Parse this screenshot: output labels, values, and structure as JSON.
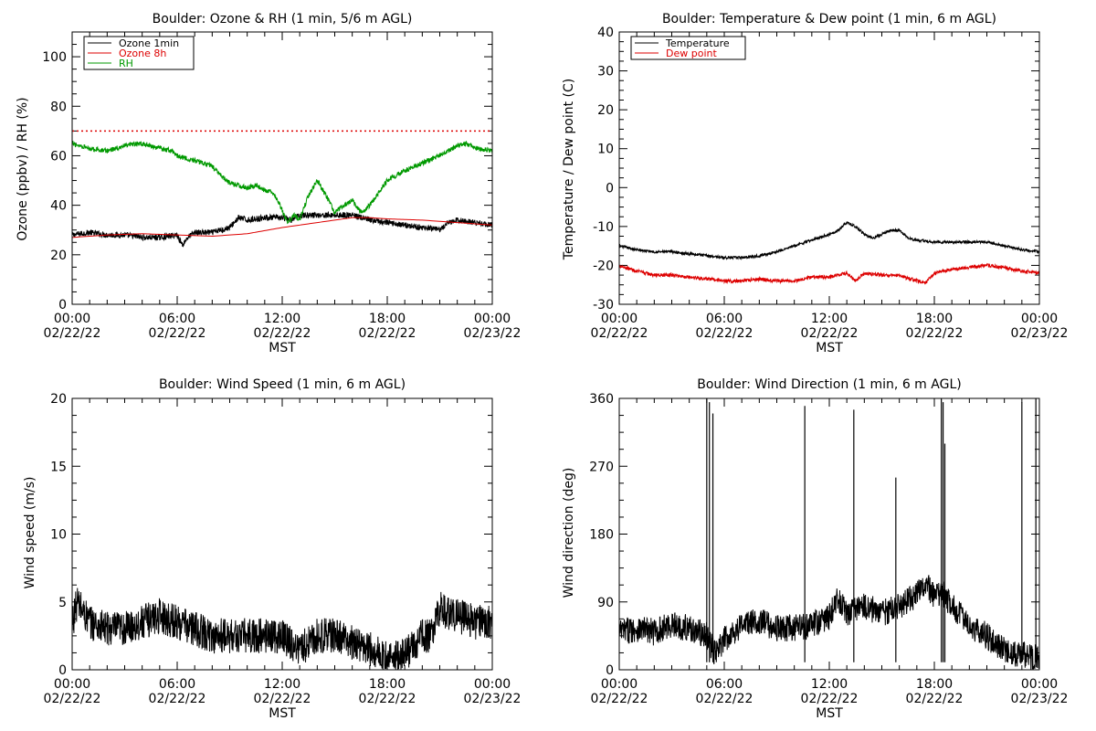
{
  "chart_data": [
    {
      "type": "line",
      "title": "Boulder: Ozone & RH (1 min, 5/6 m AGL)",
      "xlabel": "MST",
      "ylabel": "Ozone (ppbv) / RH (%)",
      "xlim": [
        0,
        24
      ],
      "ylim": [
        0,
        110
      ],
      "yticks": [
        0,
        20,
        40,
        60,
        80,
        100
      ],
      "xticks": [
        {
          "time": "00:00",
          "date": "02/22/22"
        },
        {
          "time": "06:00",
          "date": "02/22/22"
        },
        {
          "time": "12:00",
          "date": "02/22/22"
        },
        {
          "time": "18:00",
          "date": "02/22/22"
        },
        {
          "time": "00:00",
          "date": "02/23/22"
        }
      ],
      "legend_position": "top-left",
      "reference_line": {
        "y": 70,
        "color": "#dd0000",
        "style": "dotted"
      },
      "series": [
        {
          "name": "Ozone 1min",
          "color": "#000000",
          "noise": 1.2,
          "x": [
            0,
            1,
            2,
            3,
            4,
            5,
            6,
            6.3,
            6.6,
            7,
            8,
            9,
            9.5,
            10,
            11,
            12,
            12.5,
            13,
            14,
            15,
            16,
            16.5,
            17,
            18,
            19,
            20,
            21,
            21.5,
            22,
            23,
            24
          ],
          "y": [
            28,
            29,
            28,
            28,
            27,
            27,
            28,
            24,
            27,
            29,
            29,
            31,
            35,
            34,
            35,
            35,
            34,
            36,
            36,
            36,
            36,
            35,
            34,
            33,
            32,
            31,
            30,
            33,
            34,
            33,
            32
          ]
        },
        {
          "name": "Ozone 8h",
          "color": "#dd0000",
          "noise": 0,
          "x": [
            0,
            2,
            4,
            6,
            8,
            10,
            12,
            14,
            16,
            17,
            18,
            20,
            22,
            24
          ],
          "y": [
            27,
            28,
            28.5,
            28,
            27.5,
            28.5,
            31,
            33,
            35,
            35,
            34.5,
            34,
            33,
            32
          ]
        },
        {
          "name": "RH",
          "color": "#009900",
          "noise": 1.0,
          "x": [
            0,
            0.5,
            1,
            2,
            3,
            4,
            5,
            5.7,
            6,
            7,
            8,
            8.5,
            9,
            10,
            10.5,
            11,
            11.5,
            12,
            12.3,
            12.7,
            13,
            13.5,
            14,
            14.5,
            15,
            15.5,
            16,
            16.5,
            17,
            18,
            19,
            20,
            21,
            22,
            22.5,
            23,
            24
          ],
          "y": [
            65,
            64,
            63,
            62,
            64,
            65,
            63,
            62,
            60,
            58,
            56,
            52,
            49,
            47,
            48,
            46,
            45,
            38,
            33,
            36,
            34,
            44,
            50,
            44,
            37,
            40,
            42,
            37,
            40,
            50,
            54,
            57,
            60,
            64,
            65,
            63,
            62
          ]
        }
      ]
    },
    {
      "type": "line",
      "title": "Boulder: Temperature & Dew point (1 min, 6 m AGL)",
      "xlabel": "MST",
      "ylabel": "Temperature / Dew point (C)",
      "xlim": [
        0,
        24
      ],
      "ylim": [
        -30,
        40
      ],
      "yticks": [
        -30,
        -20,
        -10,
        0,
        10,
        20,
        30,
        40
      ],
      "xticks": [
        {
          "time": "00:00",
          "date": "02/22/22"
        },
        {
          "time": "06:00",
          "date": "02/22/22"
        },
        {
          "time": "12:00",
          "date": "02/22/22"
        },
        {
          "time": "18:00",
          "date": "02/22/22"
        },
        {
          "time": "00:00",
          "date": "02/23/22"
        }
      ],
      "legend_position": "top-left",
      "series": [
        {
          "name": "Temperature",
          "color": "#000000",
          "noise": 0.35,
          "x": [
            0,
            1,
            2,
            3,
            4,
            5,
            6,
            7,
            8,
            9,
            10,
            11,
            12,
            12.5,
            13,
            13.5,
            14,
            14.5,
            15,
            15.5,
            16,
            16.5,
            17,
            18,
            19,
            20,
            21,
            22,
            23,
            24
          ],
          "y": [
            -15,
            -16,
            -16.5,
            -16.5,
            -17,
            -17.5,
            -18,
            -18,
            -17.5,
            -16.5,
            -15,
            -13.5,
            -12,
            -11,
            -9,
            -10,
            -12,
            -13,
            -12,
            -11,
            -11,
            -13,
            -13.5,
            -14,
            -14,
            -14,
            -14,
            -15,
            -16,
            -16.5
          ]
        },
        {
          "name": "Dew point",
          "color": "#dd0000",
          "noise": 0.45,
          "x": [
            0,
            1,
            2,
            3,
            4,
            5,
            6,
            7,
            8,
            9,
            10,
            11,
            12,
            13,
            13.5,
            14,
            15,
            16,
            17,
            17.5,
            18,
            19,
            20,
            21,
            22,
            23,
            24
          ],
          "y": [
            -20,
            -21.5,
            -22.5,
            -22.5,
            -23,
            -23.5,
            -24,
            -24,
            -23.5,
            -24,
            -24,
            -23,
            -23,
            -22,
            -24,
            -22,
            -22.5,
            -22.5,
            -24,
            -24.5,
            -22,
            -21,
            -20.5,
            -20,
            -20.5,
            -21.5,
            -22
          ]
        }
      ]
    },
    {
      "type": "line",
      "title": "Boulder: Wind Speed (1 min, 6 m AGL)",
      "xlabel": "MST",
      "ylabel": "Wind speed (m/s)",
      "xlim": [
        0,
        24
      ],
      "ylim": [
        0,
        20
      ],
      "yticks": [
        0,
        5,
        10,
        15,
        20
      ],
      "xticks": [
        {
          "time": "00:00",
          "date": "02/22/22"
        },
        {
          "time": "06:00",
          "date": "02/22/22"
        },
        {
          "time": "12:00",
          "date": "02/22/22"
        },
        {
          "time": "18:00",
          "date": "02/22/22"
        },
        {
          "time": "00:00",
          "date": "02/23/22"
        }
      ],
      "series": [
        {
          "name": "",
          "color": "#000000",
          "noise": 1.3,
          "x": [
            0,
            0.3,
            1,
            2,
            3,
            4,
            5,
            6,
            7,
            8,
            9,
            10,
            11,
            12,
            13,
            14,
            15,
            16,
            16.5,
            17,
            18,
            19,
            20,
            20.5,
            21,
            22,
            23,
            24
          ],
          "y": [
            3.5,
            5,
            3.5,
            3,
            3,
            3.5,
            4,
            3.5,
            3,
            2.5,
            2.5,
            2.5,
            2.5,
            2.5,
            1.5,
            2.5,
            2.5,
            2,
            1.8,
            1.5,
            0.8,
            1,
            2.5,
            2.5,
            4.5,
            4,
            3.5,
            3.5
          ]
        }
      ]
    },
    {
      "type": "line",
      "title": "Boulder: Wind Direction (1 min, 6 m AGL)",
      "xlabel": "MST",
      "ylabel": "Wind direction (deg)",
      "xlim": [
        0,
        24
      ],
      "ylim": [
        0,
        360
      ],
      "yticks": [
        0,
        90,
        180,
        270,
        360
      ],
      "xticks": [
        {
          "time": "00:00",
          "date": "02/22/22"
        },
        {
          "time": "06:00",
          "date": "02/22/22"
        },
        {
          "time": "12:00",
          "date": "02/22/22"
        },
        {
          "time": "18:00",
          "date": "02/22/22"
        },
        {
          "time": "00:00",
          "date": "02/23/22"
        }
      ],
      "series": [
        {
          "name": "",
          "color": "#000000",
          "noise": 18,
          "x": [
            0,
            1,
            2,
            3,
            4,
            5,
            5.5,
            6,
            7,
            8,
            9,
            10,
            11,
            12,
            12.5,
            13,
            14,
            15,
            16,
            17,
            17.5,
            18,
            18.5,
            19,
            20,
            21,
            22,
            23,
            24
          ],
          "y": [
            50,
            55,
            50,
            60,
            55,
            45,
            20,
            40,
            60,
            65,
            55,
            55,
            60,
            70,
            95,
            75,
            85,
            75,
            85,
            100,
            115,
            95,
            100,
            85,
            60,
            45,
            25,
            20,
            15
          ]
        }
      ],
      "spikes": [
        {
          "x": 5.0,
          "y": 360
        },
        {
          "x": 5.15,
          "y": 355
        },
        {
          "x": 5.35,
          "y": 340
        },
        {
          "x": 10.6,
          "y": 350
        },
        {
          "x": 13.4,
          "y": 345
        },
        {
          "x": 15.8,
          "y": 255
        },
        {
          "x": 18.4,
          "y": 360
        },
        {
          "x": 18.5,
          "y": 355
        },
        {
          "x": 18.6,
          "y": 300
        },
        {
          "x": 23.0,
          "y": 355
        },
        {
          "x": 23.8,
          "y": 360
        }
      ]
    }
  ]
}
